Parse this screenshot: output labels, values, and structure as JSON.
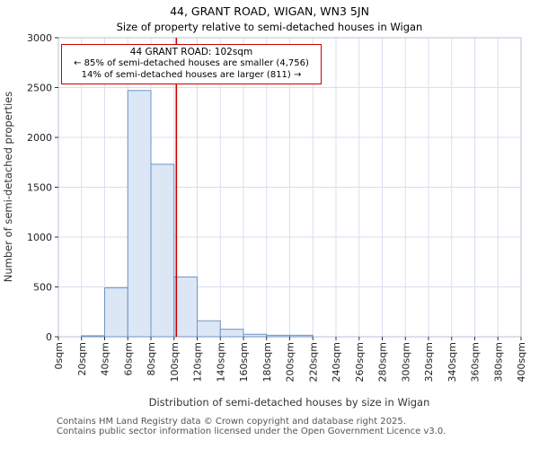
{
  "title": "44, GRANT ROAD, WIGAN, WN3 5JN",
  "subtitle": "Size of property relative to semi-detached houses in Wigan",
  "annotation": {
    "lines": [
      "44 GRANT ROAD: 102sqm",
      "← 85% of semi-detached houses are smaller (4,756)",
      "14% of semi-detached houses are larger (811) →"
    ]
  },
  "footer": {
    "lines": [
      "Contains HM Land Registry data © Crown copyright and database right 2025.",
      "Contains public sector information licensed under the Open Government Licence v3.0."
    ]
  },
  "chart_data": {
    "type": "bar",
    "title": "44, GRANT ROAD, WIGAN, WN3 5JN",
    "subtitle": "Size of property relative to semi-detached houses in Wigan",
    "xlabel": "Distribution of semi-detached houses by size in Wigan",
    "ylabel": "Number of semi-detached properties",
    "bin_width_sqm": 20,
    "categories": [
      "0-20",
      "20-40",
      "40-60",
      "60-80",
      "80-100",
      "100-120",
      "120-140",
      "140-160",
      "160-180",
      "180-200",
      "200-220",
      "220-240",
      "240-260",
      "260-280",
      "280-300",
      "300-320",
      "320-340",
      "340-360",
      "360-380",
      "380-400"
    ],
    "values": [
      0,
      10,
      490,
      2470,
      1730,
      600,
      160,
      75,
      25,
      15,
      15,
      0,
      0,
      0,
      0,
      0,
      0,
      0,
      0,
      0
    ],
    "x_tick_labels": [
      "0sqm",
      "20sqm",
      "40sqm",
      "60sqm",
      "80sqm",
      "100sqm",
      "120sqm",
      "140sqm",
      "160sqm",
      "180sqm",
      "200sqm",
      "220sqm",
      "240sqm",
      "260sqm",
      "280sqm",
      "300sqm",
      "320sqm",
      "340sqm",
      "360sqm",
      "380sqm",
      "400sqm"
    ],
    "y_ticks": [
      0,
      500,
      1000,
      1500,
      2000,
      2500,
      3000
    ],
    "xlim_sqm": [
      0,
      400
    ],
    "ylim": [
      0,
      3000
    ],
    "grid": true,
    "legend": "none",
    "marker": {
      "label": "44 GRANT ROAD",
      "value_sqm": 102,
      "smaller_pct": 85,
      "smaller_count": 4756,
      "larger_pct": 14,
      "larger_count": 811
    },
    "colors": {
      "bar_fill": "#dce7f6",
      "bar_stroke": "#6e94c4",
      "grid": "#d8dfee",
      "plot_border": "#b9c2d6",
      "marker": "#cc0000",
      "axis": "#333333"
    }
  }
}
